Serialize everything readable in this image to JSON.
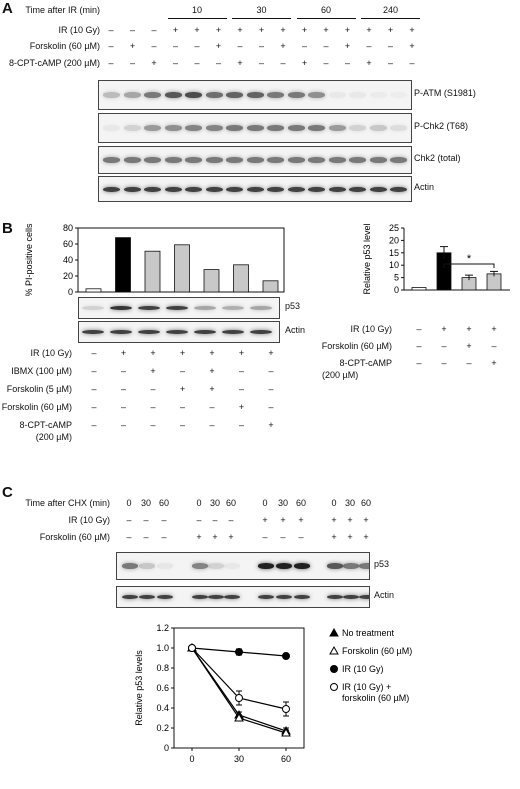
{
  "panel_a": {
    "letter": "A",
    "rows": [
      {
        "label": "Time after IR (min)",
        "values": []
      },
      {
        "label": "IR (10 Gy)",
        "values": [
          "–",
          "–",
          "–",
          "+",
          "+",
          "+",
          "+",
          "+",
          "+",
          "+",
          "+",
          "+",
          "+",
          "+",
          "+"
        ]
      },
      {
        "label": "Forskolin (60 µM)",
        "values": [
          "–",
          "+",
          "–",
          "–",
          "–",
          "+",
          "–",
          "–",
          "+",
          "–",
          "–",
          "+",
          "–",
          "–",
          "+"
        ]
      },
      {
        "label": "8-CPT-cAMP (200 µM)",
        "values": [
          "–",
          "–",
          "+",
          "–",
          "–",
          "–",
          "+",
          "–",
          "–",
          "+",
          "–",
          "–",
          "+",
          "–",
          "–"
        ]
      }
    ],
    "time_groups": [
      "10",
      "30",
      "60",
      "240"
    ],
    "blots": [
      "P-ATM (S1981)",
      "P-Chk2 (T68)",
      "Chk2 (total)",
      "Actin"
    ]
  },
  "panel_b": {
    "letter": "B",
    "left_chart": {
      "ylabel": "% PI-positive cells",
      "yticks": [
        "0",
        "20",
        "40",
        "60",
        "80"
      ],
      "values": [
        4,
        68,
        51,
        59,
        28,
        34,
        14
      ]
    },
    "blots": [
      "p53",
      "Actin"
    ],
    "rows": [
      {
        "label": "IR (10 Gy)",
        "values": [
          "–",
          "+",
          "+",
          "+",
          "+",
          "+",
          "+"
        ]
      },
      {
        "label": "IBMX (100 µM)",
        "values": [
          "–",
          "–",
          "+",
          "–",
          "+",
          "–",
          "–"
        ]
      },
      {
        "label": "Forskolin (5 µM)",
        "values": [
          "–",
          "–",
          "–",
          "+",
          "+",
          "–",
          "–"
        ]
      },
      {
        "label": "Forskolin (60 µM)",
        "values": [
          "–",
          "–",
          "–",
          "–",
          "–",
          "+",
          "–"
        ]
      },
      {
        "label": "8-CPT-cAMP",
        "label2": "(200 µM)",
        "values": [
          "–",
          "–",
          "–",
          "–",
          "–",
          "–",
          "+"
        ]
      }
    ],
    "right_chart": {
      "ylabel": "Relative p53 level",
      "yticks": [
        "0",
        "5",
        "10",
        "15",
        "20",
        "25"
      ],
      "values": [
        1,
        15,
        5,
        6.5
      ],
      "errors": [
        0,
        2.5,
        1.0,
        1.0
      ],
      "sig": "*"
    },
    "right_rows": [
      {
        "label": "IR (10 Gy)",
        "values": [
          "–",
          "+",
          "+",
          "+"
        ]
      },
      {
        "label": "Forskolin (60 µM)",
        "values": [
          "–",
          "–",
          "+",
          "–"
        ]
      },
      {
        "label": "8-CPT-cAMP",
        "label2": "(200 µM)",
        "values": [
          "–",
          "–",
          "–",
          "+"
        ]
      }
    ]
  },
  "panel_c": {
    "letter": "C",
    "rows": [
      {
        "label": "Time after CHX (min)",
        "values": [
          "0",
          "30",
          "60",
          "0",
          "30",
          "60",
          "0",
          "30",
          "60",
          "0",
          "30",
          "60"
        ]
      },
      {
        "label": "IR (10 Gy)",
        "values": [
          "–",
          "–",
          "–",
          "–",
          "–",
          "–",
          "+",
          "+",
          "+",
          "+",
          "+",
          "+"
        ]
      },
      {
        "label": "Forskolin (60 µM)",
        "values": [
          "–",
          "–",
          "–",
          "+",
          "+",
          "+",
          "–",
          "–",
          "–",
          "+",
          "+",
          "+"
        ]
      }
    ],
    "blots": [
      "p53",
      "Actin"
    ],
    "chart_data": {
      "type": "line",
      "ylabel": "Relative p53 levels",
      "xlabel": "Time after CHX (min)",
      "x": [
        0,
        30,
        60
      ],
      "xticks": [
        "0",
        "30",
        "60"
      ],
      "yticks": [
        "0",
        "0.2",
        "0.4",
        "0.6",
        "0.8",
        "1.0",
        "1.2"
      ],
      "ylim": [
        0,
        1.2
      ],
      "series": [
        {
          "name": "No treatment",
          "values": [
            1.0,
            0.33,
            0.17
          ],
          "errors": [
            0,
            0.03,
            0.03
          ],
          "marker": "filled-triangle"
        },
        {
          "name": "Forskolin (60 µM)",
          "values": [
            1.0,
            0.3,
            0.15
          ],
          "errors": [
            0,
            0.03,
            0.03
          ],
          "marker": "open-triangle"
        },
        {
          "name": "IR (10 Gy)",
          "values": [
            1.0,
            0.96,
            0.92
          ],
          "errors": [
            0,
            0.03,
            0.02
          ],
          "marker": "filled-circle"
        },
        {
          "name": "IR (10 Gy) +",
          "name2": "forskolin (60 µM)",
          "values": [
            1.0,
            0.5,
            0.39
          ],
          "errors": [
            0,
            0.07,
            0.07
          ],
          "marker": "open-circle"
        }
      ]
    }
  }
}
